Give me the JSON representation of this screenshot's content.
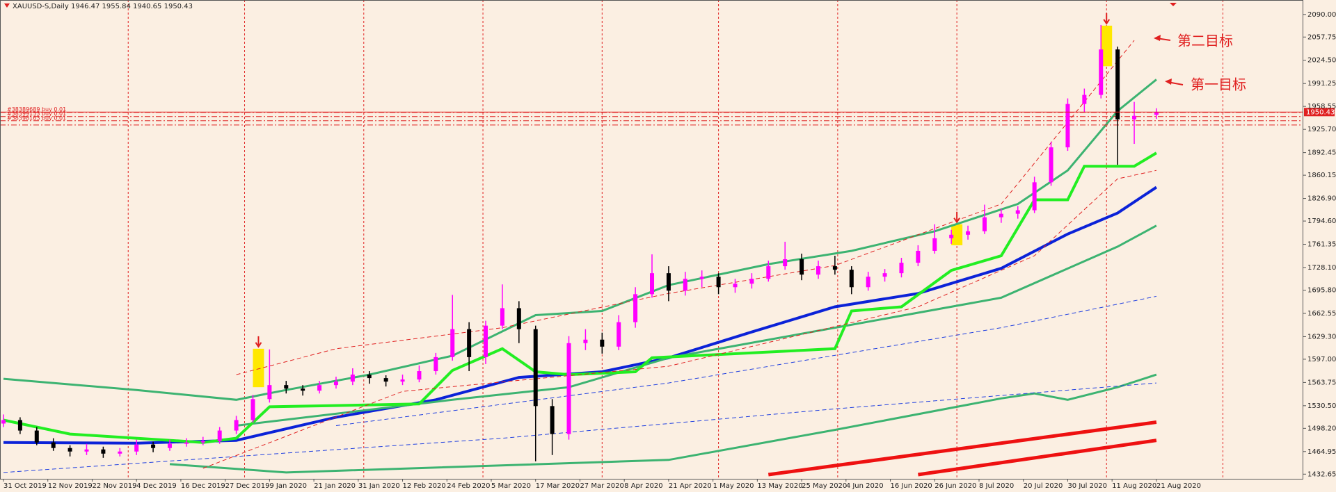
{
  "chart_data": {
    "type": "candlestick",
    "title": "XAUUSD-S,Daily  1946.47 1955.84 1940.65 1950.43",
    "bull_color": "#ff00ff",
    "bear_color": "#000000",
    "xlim": [
      0,
      234.5
    ],
    "ylim": [
      1426,
      2110.7
    ],
    "x": [
      0,
      3,
      6,
      9,
      12,
      15,
      18,
      21,
      24,
      27,
      30,
      33,
      36,
      39,
      42,
      45,
      48,
      51,
      54,
      57,
      60,
      63,
      66,
      69,
      72,
      75,
      78,
      81,
      84,
      87,
      90,
      93,
      96,
      99,
      102,
      105,
      108,
      111,
      114,
      117,
      120,
      123,
      126,
      129,
      132,
      135,
      138,
      141,
      144,
      147,
      150,
      153,
      156,
      159,
      162,
      165,
      168,
      171,
      174,
      177,
      180,
      183,
      186,
      189,
      192,
      195,
      198,
      201,
      204,
      208
    ],
    "ohlc": [
      [
        1505,
        1518,
        1500,
        1510
      ],
      [
        1510,
        1514,
        1490,
        1495
      ],
      [
        1495,
        1500,
        1474,
        1478
      ],
      [
        1478,
        1484,
        1466,
        1470
      ],
      [
        1470,
        1474,
        1458,
        1465
      ],
      [
        1465,
        1476,
        1460,
        1468
      ],
      [
        1468,
        1472,
        1456,
        1462
      ],
      [
        1462,
        1470,
        1458,
        1465
      ],
      [
        1465,
        1482,
        1460,
        1475
      ],
      [
        1475,
        1479,
        1464,
        1470
      ],
      [
        1470,
        1482,
        1466,
        1476
      ],
      [
        1476,
        1484,
        1472,
        1478
      ],
      [
        1478,
        1486,
        1474,
        1480
      ],
      [
        1480,
        1500,
        1476,
        1495
      ],
      [
        1495,
        1516,
        1490,
        1510
      ],
      [
        1510,
        1546,
        1506,
        1540
      ],
      [
        1540,
        1611,
        1535,
        1560
      ],
      [
        1560,
        1566,
        1548,
        1555
      ],
      [
        1555,
        1560,
        1545,
        1552
      ],
      [
        1552,
        1566,
        1548,
        1560
      ],
      [
        1560,
        1572,
        1555,
        1565
      ],
      [
        1565,
        1584,
        1560,
        1575
      ],
      [
        1575,
        1580,
        1562,
        1570
      ],
      [
        1570,
        1574,
        1558,
        1565
      ],
      [
        1565,
        1575,
        1560,
        1568
      ],
      [
        1568,
        1588,
        1564,
        1580
      ],
      [
        1580,
        1606,
        1575,
        1600
      ],
      [
        1600,
        1689,
        1595,
        1640
      ],
      [
        1640,
        1650,
        1580,
        1600
      ],
      [
        1600,
        1652,
        1590,
        1645
      ],
      [
        1645,
        1704,
        1640,
        1670
      ],
      [
        1670,
        1680,
        1620,
        1640
      ],
      [
        1640,
        1645,
        1451,
        1530
      ],
      [
        1530,
        1540,
        1460,
        1490
      ],
      [
        1490,
        1630,
        1482,
        1620
      ],
      [
        1620,
        1640,
        1610,
        1625
      ],
      [
        1625,
        1635,
        1605,
        1615
      ],
      [
        1615,
        1660,
        1610,
        1650
      ],
      [
        1650,
        1700,
        1642,
        1690
      ],
      [
        1690,
        1747,
        1685,
        1720
      ],
      [
        1720,
        1730,
        1680,
        1695
      ],
      [
        1695,
        1722,
        1688,
        1712
      ],
      [
        1712,
        1724,
        1700,
        1715
      ],
      [
        1715,
        1720,
        1690,
        1700
      ],
      [
        1700,
        1712,
        1692,
        1705
      ],
      [
        1705,
        1720,
        1698,
        1712
      ],
      [
        1712,
        1738,
        1708,
        1730
      ],
      [
        1730,
        1765,
        1725,
        1740
      ],
      [
        1740,
        1748,
        1710,
        1718
      ],
      [
        1718,
        1738,
        1712,
        1730
      ],
      [
        1730,
        1745,
        1718,
        1725
      ],
      [
        1725,
        1730,
        1690,
        1700
      ],
      [
        1700,
        1722,
        1695,
        1715
      ],
      [
        1715,
        1726,
        1708,
        1720
      ],
      [
        1720,
        1742,
        1714,
        1735
      ],
      [
        1735,
        1760,
        1730,
        1752
      ],
      [
        1752,
        1790,
        1748,
        1770
      ],
      [
        1770,
        1782,
        1762,
        1775
      ],
      [
        1775,
        1788,
        1768,
        1780
      ],
      [
        1780,
        1818,
        1776,
        1800
      ],
      [
        1800,
        1812,
        1792,
        1805
      ],
      [
        1805,
        1816,
        1798,
        1810
      ],
      [
        1810,
        1858,
        1806,
        1850
      ],
      [
        1850,
        1908,
        1845,
        1900
      ],
      [
        1900,
        1970,
        1895,
        1962
      ],
      [
        1962,
        1984,
        1950,
        1975
      ],
      [
        1975,
        2075,
        1970,
        2040
      ],
      [
        2040,
        2044,
        1875,
        1940
      ],
      [
        1940,
        1965,
        1905,
        1945
      ],
      [
        1946.47,
        1955.84,
        1940.65,
        1950.43
      ]
    ],
    "lines": [
      {
        "color": "#0b22d8",
        "width": 4,
        "x": [
          0,
          24,
          42,
          60,
          78,
          93,
          108,
          120,
          135,
          150,
          165,
          180,
          192,
          201,
          208
        ],
        "values": [
          1478,
          1477,
          1481,
          1514,
          1539,
          1571,
          1579,
          1599,
          1636,
          1672,
          1691,
          1727,
          1776,
          1806,
          1843
        ]
      },
      {
        "color": "#3cb371",
        "width": 3,
        "x": [
          0,
          24,
          42,
          51,
          66,
          81,
          96,
          108,
          120,
          138,
          153,
          168,
          183,
          192,
          201,
          208
        ],
        "values": [
          1569,
          1553,
          1539,
          1553,
          1575,
          1602,
          1660,
          1666,
          1703,
          1733,
          1752,
          1780,
          1819,
          1867,
          1952,
          1997
        ]
      },
      {
        "color": "#3cb371",
        "width": 3,
        "x": [
          42,
          81,
          102,
          120,
          150,
          180,
          201,
          208
        ],
        "values": [
          1502,
          1539,
          1557,
          1599,
          1642,
          1685,
          1758,
          1788
        ]
      },
      {
        "color": "#3cb371",
        "width": 3,
        "x": [
          30,
          51,
          120,
          150,
          180,
          186,
          192,
          201,
          208
        ],
        "values": [
          1447,
          1435,
          1453,
          1496,
          1541,
          1548,
          1539,
          1557,
          1575
        ]
      },
      {
        "color": "#22ee22",
        "width": 4,
        "x": [
          0,
          12,
          36,
          42,
          48,
          75,
          81,
          90,
          96,
          102,
          114,
          117,
          150,
          153,
          162,
          171,
          180,
          186,
          192,
          195,
          204,
          208
        ],
        "values": [
          1510,
          1490,
          1478,
          1484,
          1529,
          1533,
          1581,
          1612,
          1579,
          1575,
          1579,
          1599,
          1612,
          1666,
          1672,
          1724,
          1745,
          1825,
          1825,
          1873,
          1873,
          1892
        ]
      },
      {
        "color": "#e02020",
        "width": 1,
        "dash": "6 4",
        "x": [
          42,
          60,
          90,
          120,
          150,
          180,
          195,
          204
        ],
        "values": [
          1575,
          1612,
          1642,
          1691,
          1731,
          1819,
          1965,
          2053
        ]
      },
      {
        "color": "#e02020",
        "width": 1,
        "dash": "6 4",
        "x": [
          36,
          72,
          120,
          165,
          186,
          201,
          208
        ],
        "values": [
          1441,
          1551,
          1587,
          1672,
          1745,
          1855,
          1867
        ]
      },
      {
        "color": "#2040e0",
        "width": 1,
        "dash": "6 4",
        "x": [
          60,
          120,
          180,
          208
        ],
        "values": [
          1502,
          1563,
          1642,
          1687
        ]
      },
      {
        "color": "#2040e0",
        "width": 1,
        "dash": "6 4",
        "x": [
          0,
          90,
          150,
          208
        ],
        "values": [
          1435,
          1484,
          1526,
          1563
        ]
      },
      {
        "color": "#ee1111",
        "width": 5,
        "x": [
          138,
          208
        ],
        "values": [
          1432,
          1507
        ]
      },
      {
        "color": "#ee1111",
        "width": 5,
        "x": [
          165,
          208
        ],
        "values": [
          1432,
          1481
        ]
      }
    ],
    "highlights": [
      {
        "x": 46,
        "range": [
          1557,
          1612
        ]
      },
      {
        "x": 172,
        "range": [
          1760,
          1790
        ]
      },
      {
        "x": 199,
        "range": [
          2016,
          2074
        ]
      }
    ],
    "vgrid": [
      22.5,
      43.5,
      65,
      86.5,
      108,
      129,
      150.5,
      172,
      199,
      220
    ],
    "orders": [
      {
        "label": "#38389689 buy 0.01",
        "price": 1950
      },
      {
        "label": "#38399153 buy 0.01",
        "price": 1944
      },
      {
        "label": "#38398163 buy 0.01",
        "price": 1938
      }
    ],
    "stop_price": 1932,
    "current_price": 1950.43,
    "annotations": [
      "第二目标",
      "第一目标"
    ],
    "yticks": [
      {
        "value": 2090,
        "label": "2090.00"
      },
      {
        "value": 2057.75,
        "label": "2057.75"
      },
      {
        "value": 2024.5,
        "label": "2024.50"
      },
      {
        "value": 1991.25,
        "label": "1991.25"
      },
      {
        "value": 1958.55,
        "label": "1958.55"
      },
      {
        "value": 1925.7,
        "label": "1925.70"
      },
      {
        "value": 1892.45,
        "label": "1892.45"
      },
      {
        "value": 1860.15,
        "label": "1860.15"
      },
      {
        "value": 1826.9,
        "label": "1826.90"
      },
      {
        "value": 1794.6,
        "label": "1794.60"
      },
      {
        "value": 1761.35,
        "label": "1761.35"
      },
      {
        "value": 1728.1,
        "label": "1728.10"
      },
      {
        "value": 1695.8,
        "label": "1695.80"
      },
      {
        "value": 1662.55,
        "label": "1662.55"
      },
      {
        "value": 1629.3,
        "label": "1629.30"
      },
      {
        "value": 1597,
        "label": "1597.00"
      },
      {
        "value": 1563.75,
        "label": "1563.75"
      },
      {
        "value": 1530.5,
        "label": "1530.50"
      },
      {
        "value": 1498.2,
        "label": "1498.20"
      },
      {
        "value": 1464.95,
        "label": "1464.95"
      },
      {
        "value": 1432.65,
        "label": "1432.65"
      }
    ],
    "xticks": [
      {
        "value": 0,
        "label": "31 Oct 2019"
      },
      {
        "value": 8,
        "label": "12 Nov 2019"
      },
      {
        "value": 16,
        "label": "22 Nov 2019"
      },
      {
        "value": 24,
        "label": "4 Dec 2019"
      },
      {
        "value": 32,
        "label": "16 Dec 2019"
      },
      {
        "value": 40,
        "label": "27 Dec 2019"
      },
      {
        "value": 48,
        "label": "9 Jan 2020"
      },
      {
        "value": 56,
        "label": "21 Jan 2020"
      },
      {
        "value": 64,
        "label": "31 Jan 2020"
      },
      {
        "value": 72,
        "label": "12 Feb 2020"
      },
      {
        "value": 80,
        "label": "24 Feb 2020"
      },
      {
        "value": 88,
        "label": "5 Mar 2020"
      },
      {
        "value": 96,
        "label": "17 Mar 2020"
      },
      {
        "value": 104,
        "label": "27 Mar 2020"
      },
      {
        "value": 112,
        "label": "8 Apr 2020"
      },
      {
        "value": 120,
        "label": "21 Apr 2020"
      },
      {
        "value": 128,
        "label": "1 May 2020"
      },
      {
        "value": 136,
        "label": "13 May 2020"
      },
      {
        "value": 144,
        "label": "25 May 2020"
      },
      {
        "value": 152,
        "label": "4 Jun 2020"
      },
      {
        "value": 160,
        "label": "16 Jun 2020"
      },
      {
        "value": 168,
        "label": "26 Jun 2020"
      },
      {
        "value": 176,
        "label": "8 Jul 2020"
      },
      {
        "value": 184,
        "label": "20 Jul 2020"
      },
      {
        "value": 192,
        "label": "30 Jul 2020"
      },
      {
        "value": 200,
        "label": "11 Aug 2020"
      },
      {
        "value": 208,
        "label": "21 Aug 2020"
      }
    ]
  }
}
